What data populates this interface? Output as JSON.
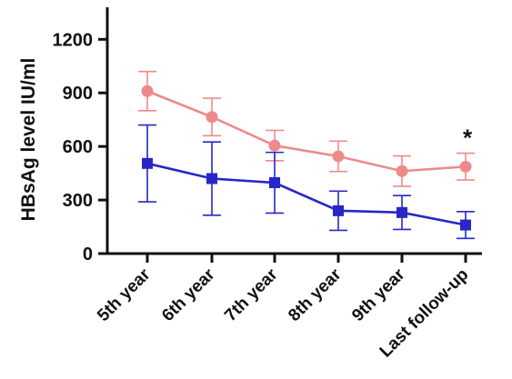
{
  "chart_data": {
    "type": "line",
    "title": "",
    "xlabel": "",
    "ylabel": "HBsAg level IU/ml",
    "categories": [
      "5th year",
      "6th year",
      "7th year",
      "8th year",
      "9th year",
      "Last follow-up"
    ],
    "ylim": [
      0,
      1400
    ],
    "yticks": [
      0,
      300,
      600,
      900,
      1200
    ],
    "grid": false,
    "legend": "none",
    "series": [
      {
        "color": "#ee8a8a",
        "marker": "circle",
        "values": [
          910,
          765,
          605,
          545,
          462,
          487
        ],
        "error": [
          110,
          105,
          85,
          85,
          85,
          75
        ]
      },
      {
        "color": "#2727c8",
        "marker": "square",
        "values": [
          505,
          420,
          397,
          240,
          230,
          160
        ],
        "error": [
          215,
          205,
          170,
          110,
          95,
          75
        ]
      }
    ],
    "annotations": [
      {
        "category": "Last follow-up",
        "text": "*"
      }
    ]
  }
}
